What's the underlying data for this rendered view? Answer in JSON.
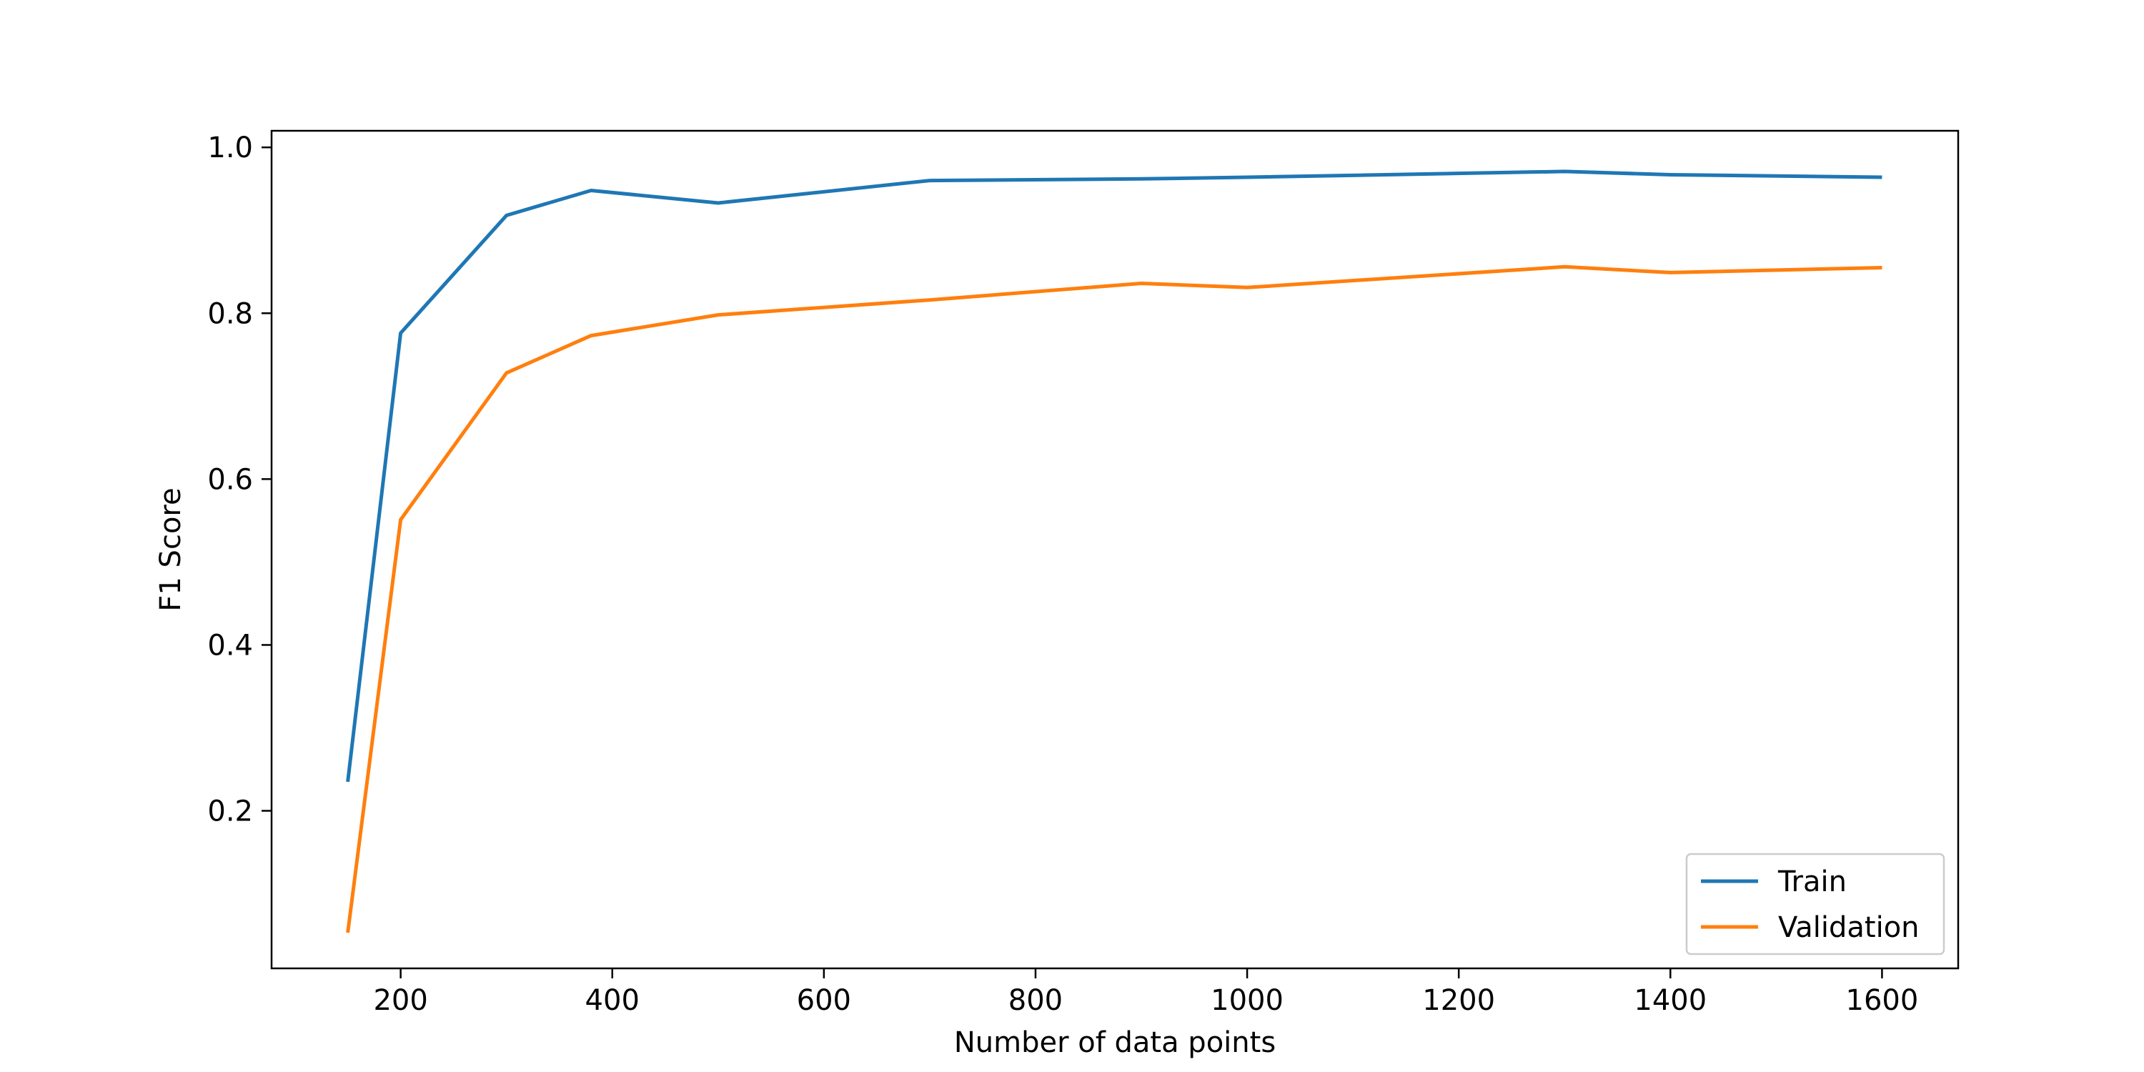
{
  "chart_data": {
    "type": "line",
    "title": "",
    "xlabel": "Number of data points",
    "ylabel": "F1 Score",
    "xlim": [
      78,
      1672
    ],
    "ylim": [
      0.01,
      1.02
    ],
    "xticks": [
      200,
      400,
      600,
      800,
      1000,
      1200,
      1400,
      1600
    ],
    "yticks": [
      0.2,
      0.4,
      0.6,
      0.8,
      1.0
    ],
    "xtick_labels": [
      "200",
      "400",
      "600",
      "800",
      "1000",
      "1200",
      "1400",
      "1600"
    ],
    "ytick_labels": [
      "0.2",
      "0.4",
      "0.6",
      "0.8",
      "1.0"
    ],
    "grid": false,
    "legend_position": "bottom-right",
    "series": [
      {
        "name": "Train",
        "color": "#1f77b4",
        "x": [
          150,
          200,
          300,
          380,
          500,
          700,
          900,
          1000,
          1300,
          1400,
          1600
        ],
        "y": [
          0.235,
          0.776,
          0.918,
          0.948,
          0.933,
          0.96,
          0.962,
          0.964,
          0.971,
          0.967,
          0.964
        ]
      },
      {
        "name": "Validation",
        "color": "#ff7f0e",
        "x": [
          150,
          200,
          300,
          380,
          500,
          700,
          900,
          1000,
          1300,
          1400,
          1600
        ],
        "y": [
          0.053,
          0.551,
          0.728,
          0.773,
          0.798,
          0.816,
          0.836,
          0.831,
          0.856,
          0.849,
          0.855
        ]
      }
    ]
  }
}
